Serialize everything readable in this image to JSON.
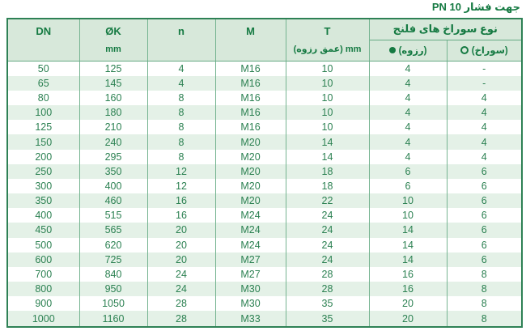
{
  "title": "جهت فشار PN 10",
  "colors": {
    "header_text": "#157a42",
    "body_text": "#2c8152",
    "header_bg": "#d7e8da",
    "row_stripe_bg": "#e4f1e7",
    "grid_line": "#76b491",
    "outer_border": "#2e8155"
  },
  "table": {
    "col_keys": [
      "dn",
      "ok_mm",
      "n",
      "m",
      "t",
      "threaded_count",
      "hole_count"
    ],
    "headers": {
      "dn": "DN",
      "ok": "ØK",
      "ok_unit": "mm",
      "n": "n",
      "m": "M",
      "t": "T",
      "t_unit": "mm (عمق رزوه)",
      "group": "نوع سوراخ های فلنج",
      "threaded_label": "(رزوه)",
      "threaded_marker": "filled-circle",
      "hole_label": "(سوراخ)",
      "hole_marker": "hollow-circle"
    },
    "rows": [
      [
        "50",
        "125",
        "4",
        "M16",
        "10",
        "4",
        "-"
      ],
      [
        "65",
        "145",
        "4",
        "M16",
        "10",
        "4",
        "-"
      ],
      [
        "80",
        "160",
        "8",
        "M16",
        "10",
        "4",
        "4"
      ],
      [
        "100",
        "180",
        "8",
        "M16",
        "10",
        "4",
        "4"
      ],
      [
        "125",
        "210",
        "8",
        "M16",
        "10",
        "4",
        "4"
      ],
      [
        "150",
        "240",
        "8",
        "M20",
        "14",
        "4",
        "4"
      ],
      [
        "200",
        "295",
        "8",
        "M20",
        "14",
        "4",
        "4"
      ],
      [
        "250",
        "350",
        "12",
        "M20",
        "18",
        "6",
        "6"
      ],
      [
        "300",
        "400",
        "12",
        "M20",
        "18",
        "6",
        "6"
      ],
      [
        "350",
        "460",
        "16",
        "M20",
        "22",
        "10",
        "6"
      ],
      [
        "400",
        "515",
        "16",
        "M24",
        "24",
        "10",
        "6"
      ],
      [
        "450",
        "565",
        "20",
        "M24",
        "24",
        "14",
        "6"
      ],
      [
        "500",
        "620",
        "20",
        "M24",
        "24",
        "14",
        "6"
      ],
      [
        "600",
        "725",
        "20",
        "M27",
        "24",
        "14",
        "6"
      ],
      [
        "700",
        "840",
        "24",
        "M27",
        "28",
        "16",
        "8"
      ],
      [
        "800",
        "950",
        "24",
        "M30",
        "28",
        "16",
        "8"
      ],
      [
        "900",
        "1050",
        "28",
        "M30",
        "35",
        "20",
        "8"
      ],
      [
        "1000",
        "1160",
        "28",
        "M33",
        "35",
        "20",
        "8"
      ]
    ]
  }
}
